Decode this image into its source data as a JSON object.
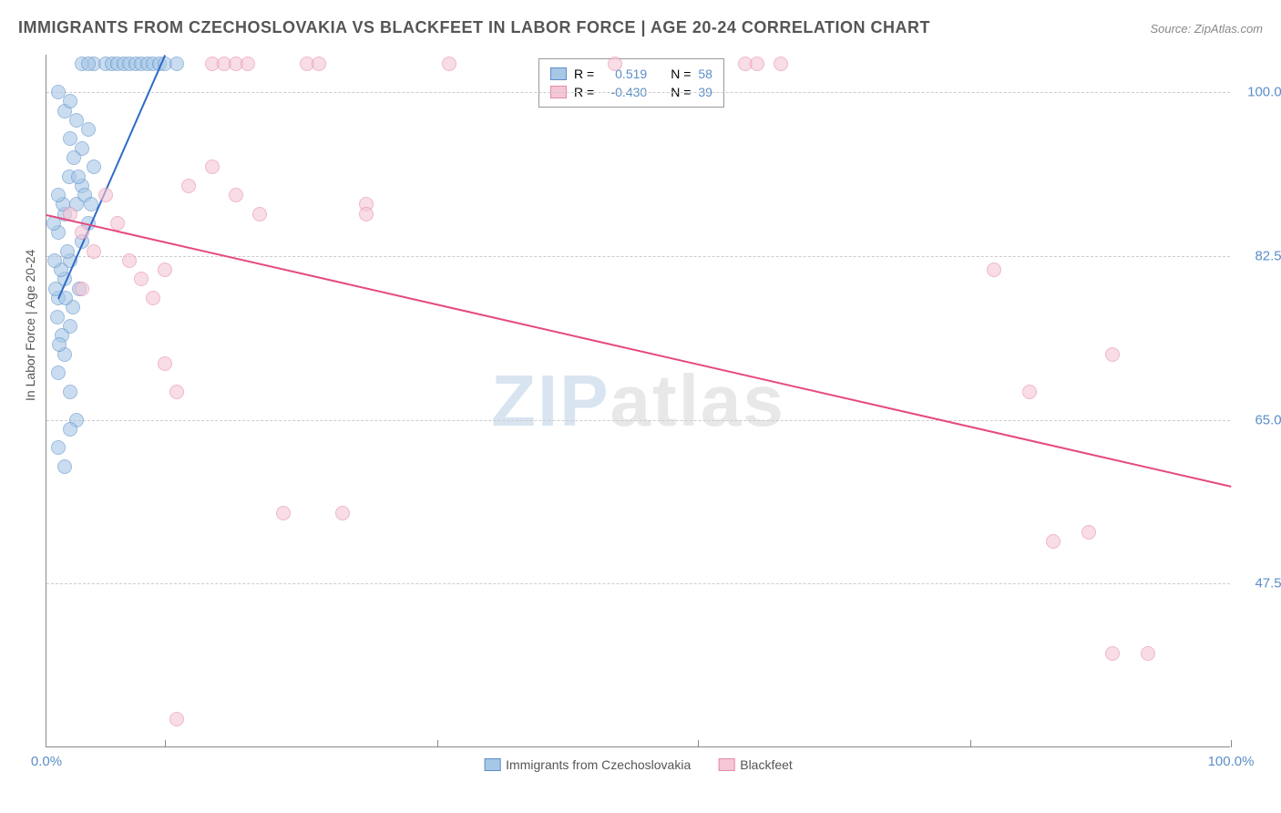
{
  "title": "IMMIGRANTS FROM CZECHOSLOVAKIA VS BLACKFEET IN LABOR FORCE | AGE 20-24 CORRELATION CHART",
  "source": "Source: ZipAtlas.com",
  "y_axis_title": "In Labor Force | Age 20-24",
  "watermark_a": "ZIP",
  "watermark_b": "atlas",
  "chart": {
    "type": "scatter",
    "xlim": [
      0,
      100
    ],
    "ylim": [
      30,
      104
    ],
    "background_color": "#ffffff",
    "grid_color": "#cccccc",
    "y_ticks": [
      {
        "value": 47.5,
        "label": "47.5%"
      },
      {
        "value": 65.0,
        "label": "65.0%"
      },
      {
        "value": 82.5,
        "label": "82.5%"
      },
      {
        "value": 100.0,
        "label": "100.0%"
      }
    ],
    "x_ticks": [
      {
        "value": 0,
        "label": "0.0%"
      },
      {
        "value": 100,
        "label": "100.0%"
      }
    ],
    "x_gridlines": [
      10,
      33,
      55,
      78,
      100
    ],
    "series": [
      {
        "name": "Immigrants from Czechoslovakia",
        "fill_color": "#a7c7e7",
        "border_color": "#5b8fc9",
        "line_color": "#2d6bc4",
        "r_label": "R =",
        "r_value": "0.519",
        "n_label": "N =",
        "n_value": "58",
        "trend": {
          "x1": 1,
          "y1": 78,
          "x2": 10,
          "y2": 104
        },
        "points": [
          [
            1,
            78
          ],
          [
            1.5,
            80
          ],
          [
            2,
            75
          ],
          [
            2,
            82
          ],
          [
            2.5,
            88
          ],
          [
            3,
            84
          ],
          [
            3,
            90
          ],
          [
            3.5,
            86
          ],
          [
            1,
            70
          ],
          [
            1.5,
            72
          ],
          [
            2,
            68
          ],
          [
            2.5,
            65
          ],
          [
            1,
            62
          ],
          [
            1.5,
            60
          ],
          [
            2,
            64
          ],
          [
            4,
            92
          ],
          [
            4,
            103
          ],
          [
            5,
            103
          ],
          [
            5.5,
            103
          ],
          [
            6,
            103
          ],
          [
            6.5,
            103
          ],
          [
            7,
            103
          ],
          [
            7.5,
            103
          ],
          [
            8,
            103
          ],
          [
            8.5,
            103
          ],
          [
            9,
            103
          ],
          [
            9.5,
            103
          ],
          [
            10,
            103
          ],
          [
            11,
            103
          ],
          [
            3,
            103
          ],
          [
            3.5,
            103
          ],
          [
            2,
            95
          ],
          [
            2.5,
            97
          ],
          [
            3,
            94
          ],
          [
            3.5,
            96
          ],
          [
            1,
            100
          ],
          [
            1.5,
            98
          ],
          [
            2,
            99
          ],
          [
            1,
            85
          ],
          [
            1.5,
            87
          ],
          [
            0.8,
            79
          ],
          [
            1.2,
            81
          ],
          [
            1.8,
            83
          ],
          [
            2.2,
            77
          ],
          [
            2.8,
            79
          ],
          [
            1.3,
            74
          ],
          [
            0.9,
            76
          ],
          [
            1.6,
            78
          ],
          [
            1.1,
            73
          ],
          [
            0.7,
            82
          ],
          [
            1.4,
            88
          ],
          [
            1.9,
            91
          ],
          [
            0.6,
            86
          ],
          [
            1.0,
            89
          ],
          [
            2.3,
            93
          ],
          [
            2.7,
            91
          ],
          [
            3.2,
            89
          ],
          [
            3.8,
            88
          ]
        ]
      },
      {
        "name": "Blackfeet",
        "fill_color": "#f5c6d6",
        "border_color": "#e58aa8",
        "line_color": "#e64980",
        "r_label": "R =",
        "r_value": "-0.430",
        "n_label": "N =",
        "n_value": "39",
        "trend": {
          "x1": 0,
          "y1": 87,
          "x2": 100,
          "y2": 58
        },
        "points": [
          [
            2,
            87
          ],
          [
            3,
            85
          ],
          [
            4,
            83
          ],
          [
            5,
            89
          ],
          [
            6,
            86
          ],
          [
            7,
            82
          ],
          [
            8,
            80
          ],
          [
            9,
            78
          ],
          [
            10,
            81
          ],
          [
            12,
            90
          ],
          [
            14,
            103
          ],
          [
            15,
            103
          ],
          [
            16,
            103
          ],
          [
            17,
            103
          ],
          [
            22,
            103
          ],
          [
            23,
            103
          ],
          [
            14,
            92
          ],
          [
            16,
            89
          ],
          [
            18,
            87
          ],
          [
            20,
            55
          ],
          [
            25,
            55
          ],
          [
            10,
            71
          ],
          [
            11,
            68
          ],
          [
            27,
            88
          ],
          [
            27,
            87
          ],
          [
            34,
            103
          ],
          [
            48,
            103
          ],
          [
            59,
            103
          ],
          [
            60,
            103
          ],
          [
            62,
            103
          ],
          [
            80,
            81
          ],
          [
            83,
            68
          ],
          [
            85,
            52
          ],
          [
            88,
            53
          ],
          [
            90,
            72
          ],
          [
            90,
            40
          ],
          [
            93,
            40
          ],
          [
            3,
            79
          ],
          [
            11,
            33
          ]
        ]
      }
    ]
  },
  "colors": {
    "tick_blue": "#5b8fc9",
    "text_gray": "#555555"
  }
}
